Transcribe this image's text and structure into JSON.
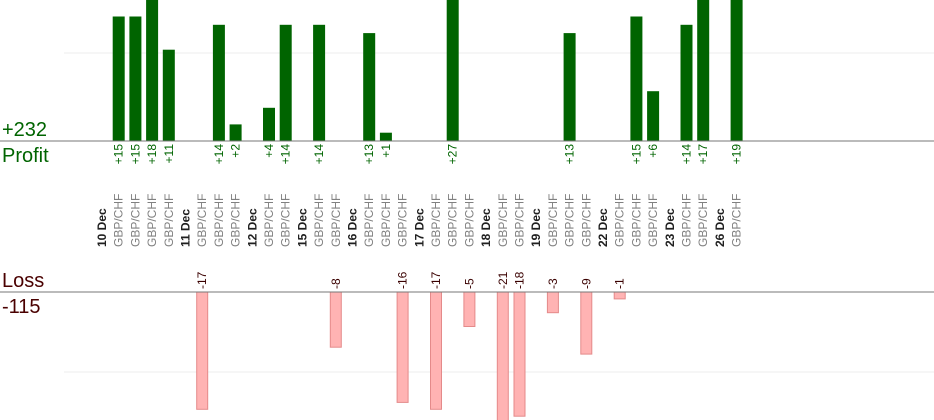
{
  "summary": {
    "profit_total": "+232",
    "profit_label": "Profit",
    "loss_label": "Loss",
    "loss_total": "-115"
  },
  "colors": {
    "profit_bar": "#006400",
    "loss_bar": "#ffb3b3",
    "loss_bar_edge": "#e48a8a",
    "profit_text": "#006400",
    "loss_text": "#3a0000",
    "pair_text": "#808080",
    "date_text": "#202020",
    "baseline": "#777777",
    "gridline": "#eeeeee"
  },
  "chart_data": {
    "type": "bar",
    "grid": true,
    "profit_axis_range": [
      0,
      16
    ],
    "loss_axis_range": [
      -21,
      0
    ],
    "days": [
      {
        "date": "10 Dec",
        "trades": [
          {
            "pair": "GBP/CHF",
            "value": 15
          },
          {
            "pair": "GBP/CHF",
            "value": 15
          },
          {
            "pair": "GBP/CHF",
            "value": 18
          },
          {
            "pair": "GBP/CHF",
            "value": 11
          }
        ]
      },
      {
        "date": "11 Dec",
        "trades": [
          {
            "pair": "GBP/CHF",
            "value": -17
          },
          {
            "pair": "GBP/CHF",
            "value": 14
          },
          {
            "pair": "GBP/CHF",
            "value": 2
          }
        ]
      },
      {
        "date": "12 Dec",
        "trades": [
          {
            "pair": "GBP/CHF",
            "value": 4
          },
          {
            "pair": "GBP/CHF",
            "value": 14
          }
        ]
      },
      {
        "date": "15 Dec",
        "trades": [
          {
            "pair": "GBP/CHF",
            "value": 14
          },
          {
            "pair": "GBP/CHF",
            "value": -8
          }
        ]
      },
      {
        "date": "16 Dec",
        "trades": [
          {
            "pair": "GBP/CHF",
            "value": 13
          },
          {
            "pair": "GBP/CHF",
            "value": 1
          },
          {
            "pair": "GBP/CHF",
            "value": -16
          }
        ]
      },
      {
        "date": "17 Dec",
        "trades": [
          {
            "pair": "GBP/CHF",
            "value": -17
          },
          {
            "pair": "GBP/CHF",
            "value": 27
          },
          {
            "pair": "GBP/CHF",
            "value": -5
          }
        ]
      },
      {
        "date": "18 Dec",
        "trades": [
          {
            "pair": "GBP/CHF",
            "value": -21
          },
          {
            "pair": "GBP/CHF",
            "value": -18
          }
        ]
      },
      {
        "date": "19 Dec",
        "trades": [
          {
            "pair": "GBP/CHF",
            "value": -3
          },
          {
            "pair": "GBP/CHF",
            "value": 13
          },
          {
            "pair": "GBP/CHF",
            "value": -9
          }
        ]
      },
      {
        "date": "22 Dec",
        "trades": [
          {
            "pair": "GBP/CHF",
            "value": -1
          },
          {
            "pair": "GBP/CHF",
            "value": 15
          },
          {
            "pair": "GBP/CHF",
            "value": 6
          }
        ]
      },
      {
        "date": "23 Dec",
        "trades": [
          {
            "pair": "GBP/CHF",
            "value": 14
          },
          {
            "pair": "GBP/CHF",
            "value": 17
          }
        ]
      },
      {
        "date": "26 Dec",
        "trades": [
          {
            "pair": "GBP/CHF",
            "value": 19
          }
        ]
      }
    ]
  }
}
